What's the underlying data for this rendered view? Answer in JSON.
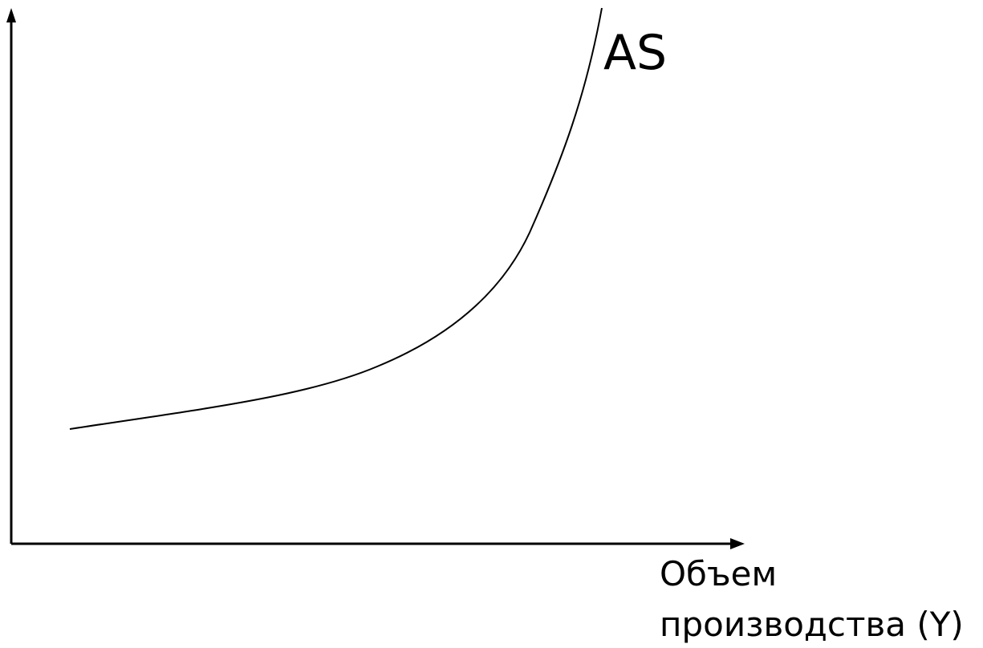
{
  "curve": {
    "label": "AS"
  },
  "x_axis": {
    "label_line1": "Объем",
    "label_line2": "производства (Y)"
  },
  "colors": {
    "ink": "#000000",
    "background": "#ffffff"
  }
}
